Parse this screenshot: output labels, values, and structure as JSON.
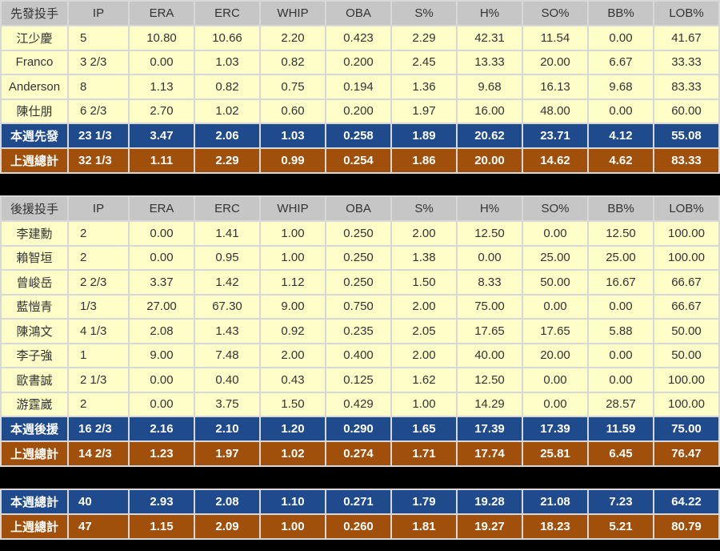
{
  "headers": [
    "IP",
    "ERA",
    "ERC",
    "WHIP",
    "OBA",
    "S%",
    "H%",
    "SO%",
    "BB%",
    "LOB%"
  ],
  "starters": {
    "title": "先發投手",
    "rows": [
      {
        "name": "江少慶",
        "v": [
          "5",
          "10.80",
          "10.66",
          "2.20",
          "0.423",
          "2.29",
          "42.31",
          "11.54",
          "0.00",
          "41.67"
        ]
      },
      {
        "name": "Franco",
        "v": [
          "3 2/3",
          "0.00",
          "1.03",
          "0.82",
          "0.200",
          "2.45",
          "13.33",
          "20.00",
          "6.67",
          "33.33"
        ]
      },
      {
        "name": "Anderson",
        "v": [
          "8",
          "1.13",
          "0.82",
          "0.75",
          "0.194",
          "1.36",
          "9.68",
          "16.13",
          "9.68",
          "83.33"
        ]
      },
      {
        "name": "陳仕朋",
        "v": [
          "6 2/3",
          "2.70",
          "1.02",
          "0.60",
          "0.200",
          "1.97",
          "16.00",
          "48.00",
          "0.00",
          "60.00"
        ]
      }
    ],
    "this_week": {
      "name": "本週先發",
      "v": [
        "23 1/3",
        "3.47",
        "2.06",
        "1.03",
        "0.258",
        "1.89",
        "20.62",
        "23.71",
        "4.12",
        "55.08"
      ]
    },
    "last_week": {
      "name": "上週總計",
      "v": [
        "32 1/3",
        "1.11",
        "2.29",
        "0.99",
        "0.254",
        "1.86",
        "20.00",
        "14.62",
        "4.62",
        "83.33"
      ]
    }
  },
  "relievers": {
    "title": "後援投手",
    "rows": [
      {
        "name": "李建勳",
        "v": [
          "2",
          "0.00",
          "1.41",
          "1.00",
          "0.250",
          "2.00",
          "12.50",
          "0.00",
          "12.50",
          "100.00"
        ]
      },
      {
        "name": "賴智垣",
        "v": [
          "2",
          "0.00",
          "0.95",
          "1.00",
          "0.250",
          "1.38",
          "0.00",
          "25.00",
          "25.00",
          "100.00"
        ]
      },
      {
        "name": "曾峻岳",
        "v": [
          "2 2/3",
          "3.37",
          "1.42",
          "1.12",
          "0.250",
          "1.50",
          "8.33",
          "50.00",
          "16.67",
          "66.67"
        ]
      },
      {
        "name": "藍愷青",
        "v": [
          "1/3",
          "27.00",
          "67.30",
          "9.00",
          "0.750",
          "2.00",
          "75.00",
          "0.00",
          "0.00",
          "66.67"
        ]
      },
      {
        "name": "陳鴻文",
        "v": [
          "4 1/3",
          "2.08",
          "1.43",
          "0.92",
          "0.235",
          "2.05",
          "17.65",
          "17.65",
          "5.88",
          "50.00"
        ]
      },
      {
        "name": "李子強",
        "v": [
          "1",
          "9.00",
          "7.48",
          "2.00",
          "0.400",
          "2.00",
          "40.00",
          "20.00",
          "0.00",
          "50.00"
        ]
      },
      {
        "name": "歐書誠",
        "v": [
          "2 1/3",
          "0.00",
          "0.40",
          "0.43",
          "0.125",
          "1.62",
          "12.50",
          "0.00",
          "0.00",
          "100.00"
        ]
      },
      {
        "name": "游霆崴",
        "v": [
          "2",
          "0.00",
          "3.75",
          "1.50",
          "0.429",
          "1.00",
          "14.29",
          "0.00",
          "28.57",
          "100.00"
        ]
      }
    ],
    "this_week": {
      "name": "本週後援",
      "v": [
        "16 2/3",
        "2.16",
        "2.10",
        "1.20",
        "0.290",
        "1.65",
        "17.39",
        "17.39",
        "11.59",
        "75.00"
      ]
    },
    "last_week": {
      "name": "上週總計",
      "v": [
        "14 2/3",
        "1.23",
        "1.97",
        "1.02",
        "0.274",
        "1.71",
        "17.74",
        "25.81",
        "6.45",
        "76.47"
      ]
    }
  },
  "totals": {
    "this_week": {
      "name": "本週總計",
      "v": [
        "40",
        "2.93",
        "2.08",
        "1.10",
        "0.271",
        "1.79",
        "19.28",
        "21.08",
        "7.23",
        "64.22"
      ]
    },
    "last_week": {
      "name": "上週總計",
      "v": [
        "47",
        "1.15",
        "2.09",
        "1.00",
        "0.260",
        "1.81",
        "19.27",
        "18.23",
        "5.21",
        "80.79"
      ]
    }
  },
  "colors": {
    "header": "#c6c6c6",
    "row": "#fefec9",
    "this_week": "#1f4b8c",
    "last_week": "#a0500a"
  }
}
